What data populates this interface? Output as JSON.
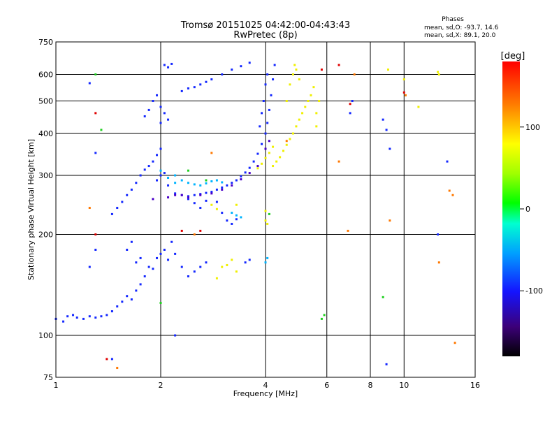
{
  "chart_data": {
    "type": "scatter",
    "title": "Tromsø 20151025 04:42:00-04:43:43",
    "subtitle": "RwPretec (8p)",
    "xlabel": "Frequency [MHz]",
    "ylabel": "Stationary phase Virtual Height [km]",
    "x_scale": "log",
    "y_scale": "log",
    "xlim": [
      1,
      16
    ],
    "ylim": [
      75,
      750
    ],
    "x_ticks": [
      1,
      2,
      4,
      6,
      8,
      10,
      16
    ],
    "y_ticks": [
      75,
      100,
      200,
      300,
      400,
      500,
      600,
      750
    ],
    "x_grid": [
      2,
      4,
      6,
      8,
      10
    ],
    "y_grid": [
      100,
      200,
      300,
      400,
      500,
      600
    ],
    "stats": {
      "heading": "Phases",
      "line1": "mean, sd,O: -93.7, 14.6",
      "line2": "mean, sd,X: 89.1, 20.0"
    },
    "colorbar": {
      "label": "[deg]",
      "min": -180,
      "max": 180,
      "ticks": [
        100,
        0,
        -100
      ],
      "tick_labels": [
        "100",
        "0",
        "-100"
      ]
    },
    "series": [
      {
        "phase_deg": -100,
        "color": "#1428ff",
        "points": [
          [
            1.0,
            112
          ],
          [
            1.05,
            110
          ],
          [
            1.08,
            114
          ],
          [
            1.12,
            115
          ],
          [
            1.15,
            113
          ],
          [
            1.2,
            112
          ],
          [
            1.25,
            114
          ],
          [
            1.3,
            113
          ],
          [
            1.35,
            114
          ],
          [
            1.4,
            115
          ],
          [
            1.45,
            118
          ],
          [
            1.5,
            122
          ],
          [
            1.55,
            126
          ],
          [
            1.6,
            131
          ],
          [
            1.65,
            128
          ],
          [
            1.7,
            136
          ],
          [
            1.75,
            142
          ],
          [
            1.8,
            150
          ],
          [
            1.85,
            160
          ],
          [
            1.9,
            158
          ],
          [
            1.95,
            170
          ],
          [
            2.0,
            175
          ],
          [
            2.05,
            180
          ],
          [
            2.1,
            168
          ],
          [
            2.15,
            190
          ],
          [
            2.2,
            175
          ],
          [
            2.3,
            160
          ],
          [
            2.4,
            150
          ],
          [
            2.5,
            155
          ],
          [
            2.6,
            160
          ],
          [
            2.7,
            165
          ],
          [
            1.6,
            180
          ],
          [
            1.65,
            190
          ],
          [
            1.7,
            165
          ],
          [
            1.75,
            170
          ],
          [
            1.45,
            230
          ],
          [
            1.5,
            240
          ],
          [
            1.55,
            250
          ],
          [
            1.6,
            262
          ],
          [
            1.65,
            272
          ],
          [
            1.7,
            285
          ],
          [
            1.75,
            300
          ],
          [
            1.8,
            312
          ],
          [
            1.85,
            320
          ],
          [
            1.9,
            330
          ],
          [
            1.95,
            345
          ],
          [
            2.0,
            360
          ],
          [
            1.95,
            290
          ],
          [
            2.0,
            300
          ],
          [
            2.05,
            305
          ],
          [
            2.1,
            280
          ],
          [
            2.2,
            265
          ],
          [
            2.3,
            262
          ],
          [
            2.4,
            260
          ],
          [
            2.5,
            262
          ],
          [
            2.6,
            264
          ],
          [
            2.7,
            266
          ],
          [
            2.8,
            268
          ],
          [
            2.9,
            272
          ],
          [
            3.0,
            276
          ],
          [
            3.1,
            280
          ],
          [
            3.2,
            285
          ],
          [
            3.3,
            290
          ],
          [
            3.4,
            298
          ],
          [
            3.5,
            306
          ],
          [
            3.6,
            316
          ],
          [
            3.7,
            330
          ],
          [
            3.8,
            348
          ],
          [
            3.9,
            372
          ],
          [
            4.0,
            400
          ],
          [
            4.05,
            430
          ],
          [
            4.1,
            470
          ],
          [
            4.15,
            520
          ],
          [
            4.2,
            580
          ],
          [
            4.25,
            640
          ],
          [
            3.95,
            500
          ],
          [
            3.9,
            460
          ],
          [
            4.0,
            560
          ],
          [
            4.05,
            600
          ],
          [
            3.85,
            420
          ],
          [
            1.8,
            450
          ],
          [
            1.85,
            470
          ],
          [
            1.9,
            500
          ],
          [
            1.95,
            520
          ],
          [
            2.0,
            480
          ],
          [
            2.05,
            460
          ],
          [
            2.1,
            440
          ],
          [
            2.0,
            430
          ],
          [
            2.05,
            640
          ],
          [
            2.1,
            630
          ],
          [
            2.15,
            645
          ],
          [
            2.3,
            535
          ],
          [
            2.4,
            545
          ],
          [
            2.5,
            550
          ],
          [
            2.6,
            560
          ],
          [
            2.7,
            570
          ],
          [
            2.8,
            580
          ],
          [
            3.0,
            600
          ],
          [
            3.2,
            620
          ],
          [
            3.4,
            635
          ],
          [
            3.6,
            650
          ],
          [
            2.6,
            240
          ],
          [
            2.5,
            248
          ],
          [
            2.4,
            255
          ],
          [
            2.7,
            252
          ],
          [
            2.9,
            250
          ],
          [
            3.0,
            232
          ],
          [
            3.1,
            220
          ],
          [
            3.2,
            215
          ],
          [
            3.3,
            222
          ],
          [
            3.5,
            165
          ],
          [
            3.6,
            168
          ],
          [
            1.25,
            565
          ],
          [
            1.3,
            350
          ],
          [
            1.25,
            160
          ],
          [
            1.3,
            180
          ],
          [
            1.45,
            85
          ],
          [
            2.2,
            100
          ],
          [
            8.9,
            82
          ],
          [
            8.9,
            410
          ],
          [
            8.7,
            440
          ],
          [
            9.1,
            360
          ],
          [
            13.3,
            330
          ],
          [
            12.5,
            200
          ],
          [
            7.1,
            500
          ],
          [
            7.0,
            460
          ]
        ]
      },
      {
        "phase_deg": -130,
        "color": "#4a00c8",
        "points": [
          [
            2.2,
            262
          ],
          [
            2.4,
            258
          ],
          [
            2.6,
            262
          ],
          [
            2.8,
            265
          ],
          [
            3.0,
            272
          ],
          [
            3.2,
            280
          ],
          [
            3.4,
            292
          ],
          [
            3.6,
            305
          ],
          [
            3.8,
            320
          ],
          [
            4.0,
            360
          ],
          [
            4.1,
            380
          ],
          [
            1.9,
            255
          ],
          [
            2.1,
            258
          ],
          [
            2.3,
            262
          ]
        ]
      },
      {
        "phase_deg": -60,
        "color": "#00b4ff",
        "points": [
          [
            2.2,
            285
          ],
          [
            2.3,
            290
          ],
          [
            2.4,
            285
          ],
          [
            2.5,
            282
          ],
          [
            2.6,
            280
          ],
          [
            2.7,
            284
          ],
          [
            2.8,
            288
          ],
          [
            2.9,
            290
          ],
          [
            3.0,
            286
          ],
          [
            3.2,
            232
          ],
          [
            3.3,
            228
          ],
          [
            3.4,
            225
          ],
          [
            4.0,
            165
          ],
          [
            4.05,
            170
          ],
          [
            2.2,
            300
          ],
          [
            2.0,
            310
          ],
          [
            2.1,
            295
          ]
        ]
      },
      {
        "phase_deg": 100,
        "color": "#f0f000",
        "points": [
          [
            4.2,
            320
          ],
          [
            4.3,
            330
          ],
          [
            4.4,
            340
          ],
          [
            4.5,
            355
          ],
          [
            4.6,
            370
          ],
          [
            4.7,
            385
          ],
          [
            4.8,
            400
          ],
          [
            4.9,
            420
          ],
          [
            5.0,
            440
          ],
          [
            5.1,
            460
          ],
          [
            5.2,
            480
          ],
          [
            5.3,
            500
          ],
          [
            5.4,
            520
          ],
          [
            5.5,
            550
          ],
          [
            4.6,
            500
          ],
          [
            4.7,
            560
          ],
          [
            4.8,
            600
          ],
          [
            4.85,
            640
          ],
          [
            4.9,
            620
          ],
          [
            5.0,
            580
          ],
          [
            5.6,
            420
          ],
          [
            5.6,
            460
          ],
          [
            5.7,
            500
          ],
          [
            3.8,
            315
          ],
          [
            3.9,
            325
          ],
          [
            4.0,
            338
          ],
          [
            4.1,
            350
          ],
          [
            4.2,
            365
          ],
          [
            3.0,
            160
          ],
          [
            3.1,
            162
          ],
          [
            3.2,
            168
          ],
          [
            3.3,
            155
          ],
          [
            2.9,
            148
          ],
          [
            3.3,
            245
          ],
          [
            2.8,
            245
          ],
          [
            2.9,
            238
          ],
          [
            4.0,
            235
          ],
          [
            4.05,
            215
          ],
          [
            4.0,
            220
          ],
          [
            9.0,
            620
          ],
          [
            10.0,
            580
          ],
          [
            11.0,
            480
          ],
          [
            12.5,
            610
          ],
          [
            12.6,
            600
          ]
        ]
      },
      {
        "phase_deg": 150,
        "color": "#ff7800",
        "points": [
          [
            6.5,
            330
          ],
          [
            7.2,
            600
          ],
          [
            9.1,
            220
          ],
          [
            10.1,
            520
          ],
          [
            13.5,
            270
          ],
          [
            13.8,
            262
          ],
          [
            14.0,
            95
          ],
          [
            1.5,
            80
          ],
          [
            2.8,
            350
          ],
          [
            1.25,
            240
          ],
          [
            4.6,
            380
          ],
          [
            6.9,
            205
          ],
          [
            12.6,
            165
          ],
          [
            2.5,
            200
          ]
        ]
      },
      {
        "phase_deg": 30,
        "color": "#20d020",
        "points": [
          [
            1.3,
            600
          ],
          [
            5.8,
            112
          ],
          [
            5.9,
            115
          ],
          [
            2.4,
            310
          ],
          [
            2.7,
            290
          ],
          [
            8.7,
            130
          ],
          [
            2.0,
            125
          ],
          [
            4.1,
            230
          ],
          [
            1.35,
            410
          ]
        ]
      },
      {
        "phase_deg": 170,
        "color": "#e00000",
        "points": [
          [
            1.3,
            200
          ],
          [
            1.4,
            85
          ],
          [
            2.6,
            205
          ],
          [
            7.0,
            490
          ],
          [
            6.5,
            640
          ],
          [
            5.8,
            620
          ],
          [
            10.0,
            530
          ],
          [
            2.3,
            205
          ],
          [
            1.3,
            460
          ]
        ]
      }
    ]
  }
}
